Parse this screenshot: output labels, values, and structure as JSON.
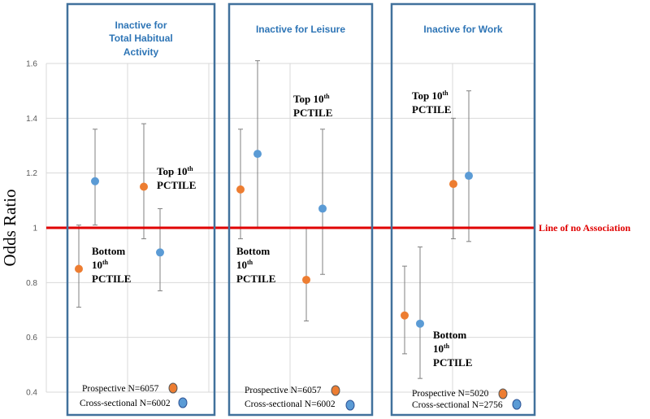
{
  "chart_data": {
    "type": "scatter",
    "subtype": "error-bar forest plot",
    "ylabel": "Odds Ratio",
    "ylim": [
      0.4,
      1.6
    ],
    "yticks": [
      "0.4",
      "0.6",
      "0.8",
      "1",
      "1.2",
      "1.4",
      "1.6"
    ],
    "grid": true,
    "reference_line": {
      "value": 1.0,
      "label": "Line of no   Association",
      "color": "#E00000"
    },
    "colors": {
      "prospective": "#ED7D31",
      "cross_sectional": "#5B9BD5",
      "panel_border": "#41719C",
      "whisker": "#808080"
    },
    "panels": [
      {
        "title": [
          "Inactive for",
          "Total Habitual",
          "Activity"
        ],
        "points": [
          {
            "series": "prospective",
            "group": "bottom",
            "or": 0.85,
            "lo": 0.71,
            "hi": 1.01
          },
          {
            "series": "cross_sectional",
            "group": "bottom",
            "or": 1.17,
            "lo": 1.01,
            "hi": 1.36
          },
          {
            "series": "prospective",
            "group": "top",
            "or": 1.15,
            "lo": 0.96,
            "hi": 1.38
          },
          {
            "series": "cross_sectional",
            "group": "top",
            "or": 0.91,
            "lo": 0.77,
            "hi": 1.07
          }
        ],
        "annotations": [
          {
            "lines": [
              "Bottom",
              "10",
              "PCTILE"
            ],
            "sup": "th"
          },
          {
            "lines": [
              "Top 10",
              "PCTILE"
            ],
            "sup": "th"
          }
        ],
        "legend": {
          "prospective": "Prospective N=6057",
          "cross_sectional": "Cross-sectional  N=6002"
        }
      },
      {
        "title": [
          "Inactive for Leisure"
        ],
        "points": [
          {
            "series": "prospective",
            "group": "bottom",
            "or": 1.14,
            "lo": 0.96,
            "hi": 1.36
          },
          {
            "series": "cross_sectional",
            "group": "bottom",
            "or": 1.27,
            "lo": 1.0,
            "hi": 1.61
          },
          {
            "series": "prospective",
            "group": "top",
            "or": 0.81,
            "lo": 0.66,
            "hi": 1.0
          },
          {
            "series": "cross_sectional",
            "group": "top",
            "or": 1.07,
            "lo": 0.83,
            "hi": 1.36
          }
        ],
        "annotations": [
          {
            "lines": [
              "Top 10",
              "PCTILE"
            ],
            "sup": "th"
          },
          {
            "lines": [
              "Bottom",
              "10",
              "PCTILE"
            ],
            "sup": "th"
          }
        ],
        "legend": {
          "prospective": "Prospective N=6057",
          "cross_sectional": "Cross-sectional  N=6002"
        }
      },
      {
        "title": [
          "Inactive for Work"
        ],
        "points": [
          {
            "series": "prospective",
            "group": "bottom",
            "or": 0.68,
            "lo": 0.54,
            "hi": 0.86
          },
          {
            "series": "cross_sectional",
            "group": "bottom",
            "or": 0.65,
            "lo": 0.45,
            "hi": 0.93
          },
          {
            "series": "prospective",
            "group": "top",
            "or": 1.16,
            "lo": 0.96,
            "hi": 1.4
          },
          {
            "series": "cross_sectional",
            "group": "top",
            "or": 1.19,
            "lo": 0.95,
            "hi": 1.5
          }
        ],
        "annotations": [
          {
            "lines": [
              "Top 10",
              "PCTILE"
            ],
            "sup": "th"
          },
          {
            "lines": [
              "Bottom",
              "10",
              "PCTILE"
            ],
            "sup": "th"
          }
        ],
        "legend": {
          "prospective": "Prospective N=5020",
          "cross_sectional": "Cross-sectional  N=2756"
        }
      }
    ]
  }
}
